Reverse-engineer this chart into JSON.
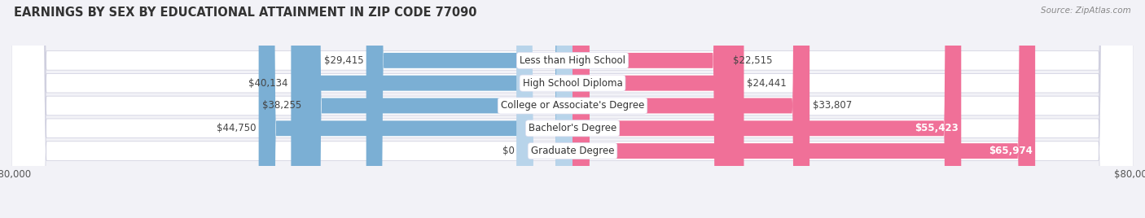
{
  "title": "EARNINGS BY SEX BY EDUCATIONAL ATTAINMENT IN ZIP CODE 77090",
  "source": "Source: ZipAtlas.com",
  "categories": [
    "Less than High School",
    "High School Diploma",
    "College or Associate's Degree",
    "Bachelor's Degree",
    "Graduate Degree"
  ],
  "male_values": [
    29415,
    40134,
    38255,
    44750,
    0
  ],
  "female_values": [
    22515,
    24441,
    33807,
    55423,
    65974
  ],
  "male_labels": [
    "$29,415",
    "$40,134",
    "$38,255",
    "$44,750",
    "$0"
  ],
  "female_labels": [
    "$22,515",
    "$24,441",
    "$33,807",
    "$55,423",
    "$65,974"
  ],
  "male_label_inside": [
    false,
    false,
    false,
    false,
    false
  ],
  "female_label_inside": [
    false,
    false,
    false,
    true,
    true
  ],
  "male_color": "#7bafd4",
  "female_color": "#f07098",
  "male_color_light": "#b8d4ea",
  "female_color_light": "#f8b8cc",
  "axis_max": 80000,
  "background_color": "#f2f2f7",
  "bar_bg_color": "#e2e2ec",
  "row_bg_color": "#ebebf5",
  "title_fontsize": 10.5,
  "label_fontsize": 8.5,
  "source_fontsize": 7.5,
  "cat_fontsize": 8.5
}
